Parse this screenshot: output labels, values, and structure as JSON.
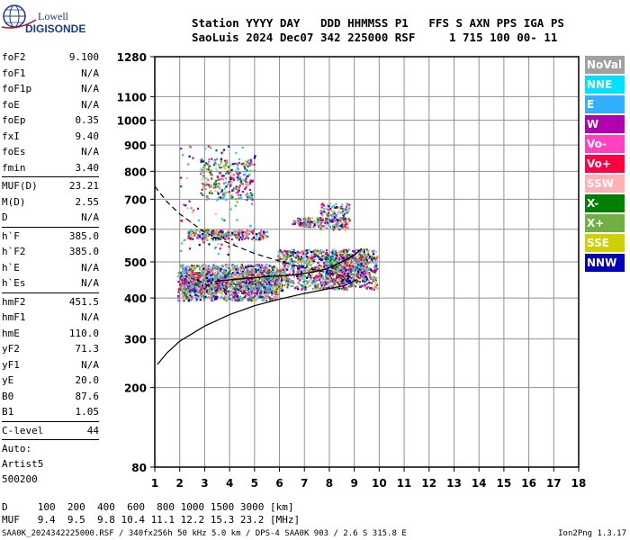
{
  "logo": {
    "line1": "Lowell",
    "line2": "DIGISONDE"
  },
  "header": {
    "row1": "Station YYYY DAY   DDD HHMMSS P1   FFS S AXN PPS IGA PS",
    "row2": "SaoLuis 2024 Dec07 342 225000 RSF     1 715 100 00- 11"
  },
  "params": {
    "group1": [
      {
        "k": "foF2",
        "v": "9.100"
      },
      {
        "k": "foF1",
        "v": "N/A"
      },
      {
        "k": "foF1p",
        "v": "N/A"
      },
      {
        "k": "foE",
        "v": "N/A"
      },
      {
        "k": "foEp",
        "v": "0.35"
      },
      {
        "k": "fxI",
        "v": "9.40"
      },
      {
        "k": "foEs",
        "v": "N/A"
      },
      {
        "k": "fmin",
        "v": "3.40"
      }
    ],
    "group2": [
      {
        "k": "MUF(D)",
        "v": "23.21"
      },
      {
        "k": "M(D)",
        "v": "2.55"
      },
      {
        "k": "D",
        "v": "N/A"
      }
    ],
    "group3": [
      {
        "k": "h`F",
        "v": "385.0"
      },
      {
        "k": "h`F2",
        "v": "385.0"
      },
      {
        "k": "h`E",
        "v": "N/A"
      },
      {
        "k": "h`Es",
        "v": "N/A"
      }
    ],
    "group4": [
      {
        "k": "hmF2",
        "v": "451.5"
      },
      {
        "k": "hmF1",
        "v": "N/A"
      },
      {
        "k": "hmE",
        "v": "110.0"
      },
      {
        "k": "yF2",
        "v": "71.3"
      },
      {
        "k": "yF1",
        "v": "N/A"
      },
      {
        "k": "yE",
        "v": "20.0"
      },
      {
        "k": "B0",
        "v": "87.6"
      },
      {
        "k": "B1",
        "v": "1.05"
      }
    ],
    "clevel": {
      "k": "C-level",
      "v": "44"
    },
    "auto": "Auto:",
    "artist": "Artist5",
    "code": "500200"
  },
  "legend": [
    {
      "label": "NoVal",
      "color": "#a0a0a0"
    },
    {
      "label": "NNE",
      "color": "#00e0ff"
    },
    {
      "label": "E",
      "color": "#30b0ff"
    },
    {
      "label": "W",
      "color": "#b000b0"
    },
    {
      "label": "Vo-",
      "color": "#ff40c0"
    },
    {
      "label": "Vo+",
      "color": "#ff0040"
    },
    {
      "label": "SSW",
      "color": "#ffb0b0"
    },
    {
      "label": "X-",
      "color": "#008000"
    },
    {
      "label": "X+",
      "color": "#70b040"
    },
    {
      "label": "SSE",
      "color": "#d0d000"
    },
    {
      "label": "NNW",
      "color": "#0000c0"
    }
  ],
  "bottom": {
    "d_row": "D     100  200  400  600  800 1000 1500 3000 [km]",
    "muf_row": "MUF   9.4  9.5  9.8 10.4 11.1 12.2 15.3 23.2 [MHz]"
  },
  "footer": "SAA0K_2024342225000.RSF / 340fx256h 50 kHz 5.0 km / DPS-4 SAA0K 903 / 2.6 S 315.8 E",
  "version": "Ion2Png 1.3.17",
  "chart_data": {
    "type": "scatter",
    "x": {
      "min": 1,
      "max": 18,
      "ticks": [
        1,
        2,
        3,
        4,
        5,
        6,
        7,
        8,
        9,
        10,
        11,
        12,
        13,
        14,
        15,
        16,
        17,
        18
      ],
      "unit": "MHz"
    },
    "y": {
      "min": 80,
      "max": 1280,
      "scale": "square-root",
      "ticks": [
        80,
        200,
        300,
        400,
        500,
        600,
        700,
        800,
        900,
        1000,
        1100,
        1280
      ],
      "unit": "km"
    },
    "grid": true,
    "series": [
      {
        "values": [
          {
            "x": 1.1,
            "y": 245
          },
          {
            "x": 1.5,
            "y": 270
          },
          {
            "x": 2.0,
            "y": 295
          },
          {
            "x": 3.0,
            "y": 330
          },
          {
            "x": 4.0,
            "y": 358
          },
          {
            "x": 5.0,
            "y": 380
          },
          {
            "x": 6.0,
            "y": 397
          },
          {
            "x": 7.0,
            "y": 412
          },
          {
            "x": 8.0,
            "y": 425
          },
          {
            "x": 8.6,
            "y": 433
          },
          {
            "x": 9.1,
            "y": 450
          }
        ]
      },
      {
        "values": [
          {
            "x": 1.0,
            "y": 745
          },
          {
            "x": 1.5,
            "y": 690
          },
          {
            "x": 2.0,
            "y": 650
          },
          {
            "x": 3.0,
            "y": 590
          },
          {
            "x": 4.0,
            "y": 555
          },
          {
            "x": 5.0,
            "y": 525
          },
          {
            "x": 6.0,
            "y": 502
          },
          {
            "x": 7.0,
            "y": 483
          },
          {
            "x": 8.0,
            "y": 468
          },
          {
            "x": 9.0,
            "y": 455
          }
        ]
      },
      {
        "values": [
          {
            "x": 3.4,
            "y": 445
          },
          {
            "x": 4.5,
            "y": 452
          },
          {
            "x": 5.5,
            "y": 458
          },
          {
            "x": 6.5,
            "y": 462
          },
          {
            "x": 7.3,
            "y": 470
          },
          {
            "x": 7.9,
            "y": 480
          },
          {
            "x": 8.5,
            "y": 500
          },
          {
            "x": 9.0,
            "y": 520
          },
          {
            "x": 9.3,
            "y": 540
          }
        ]
      }
    ],
    "echo_clusters": [
      {
        "xmin": 1.9,
        "xmax": 5.9,
        "ymin": 395,
        "ymax": 495,
        "count": 1100
      },
      {
        "xmin": 2.0,
        "xmax": 6.1,
        "ymin": 415,
        "ymax": 475,
        "count": 700
      },
      {
        "xmin": 5.9,
        "xmax": 9.9,
        "ymin": 425,
        "ymax": 540,
        "count": 900
      },
      {
        "xmin": 7.8,
        "xmax": 9.5,
        "ymin": 445,
        "ymax": 525,
        "count": 500
      },
      {
        "xmin": 2.3,
        "xmax": 5.5,
        "ymin": 570,
        "ymax": 600,
        "count": 260
      },
      {
        "xmin": 6.5,
        "xmax": 8.6,
        "ymin": 610,
        "ymax": 640,
        "count": 160
      },
      {
        "xmin": 7.6,
        "xmax": 8.8,
        "ymin": 600,
        "ymax": 690,
        "count": 140
      },
      {
        "xmin": 2.8,
        "xmax": 4.9,
        "ymin": 700,
        "ymax": 850,
        "count": 260
      },
      {
        "xmin": 2.0,
        "xmax": 5.0,
        "ymin": 520,
        "ymax": 900,
        "count": 110
      }
    ]
  }
}
